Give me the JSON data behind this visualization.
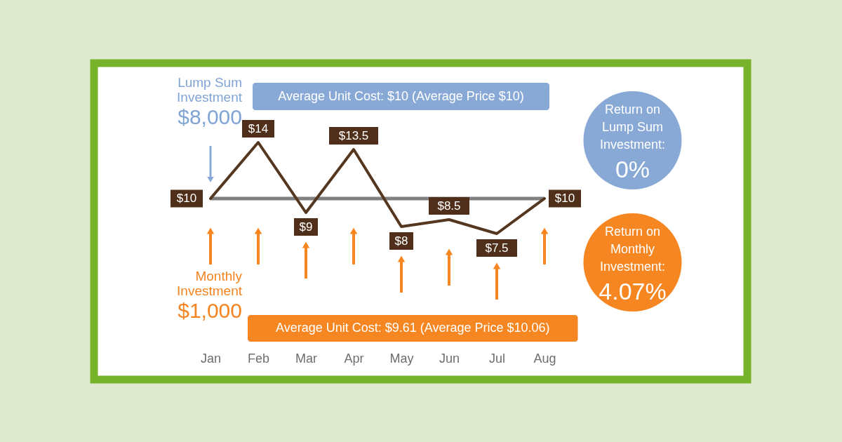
{
  "chart_data": {
    "type": "line",
    "categories": [
      "Jan",
      "Feb",
      "Mar",
      "Apr",
      "May",
      "Jun",
      "Jul",
      "Aug"
    ],
    "values": [
      10,
      14,
      9,
      13.5,
      8,
      8.5,
      7.5,
      10
    ],
    "color": "#55361f",
    "value_labels": [
      "$10",
      "$14",
      "$9",
      "$13.5",
      "$8",
      "$8.5",
      "$7.5",
      "$10"
    ],
    "ref_lines": [
      {
        "axis": "y",
        "value": 10,
        "color": "#808080"
      }
    ],
    "annotations": [
      "Lump Sum\nInvestment\n$8,000",
      "Average Unit Cost: $10 (Average Price $10)",
      "Return on\nLump Sum\nInvestment:\n0%",
      "Monthly\nInvestment\n$1,000",
      "Average Unit Cost: $9.61 (Average Price $10.06)",
      "Return on\nMonthly\nInvestment:\n4.07%"
    ],
    "tick_labels": "x"
  }
}
